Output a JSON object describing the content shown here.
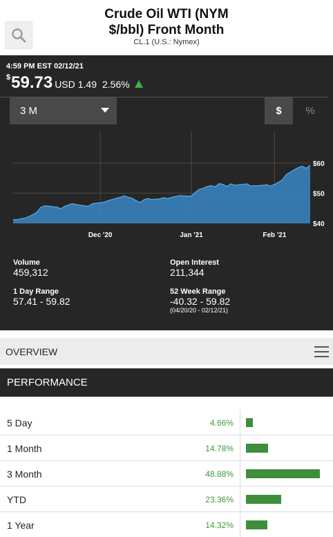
{
  "header": {
    "title_line1": "Crude Oil WTI (NYM",
    "title_line2": "$/bbl) Front Month",
    "subtitle": "CL.1  (U.S.: Nymex)",
    "search_icon": "search-icon"
  },
  "quote": {
    "timestamp": "4:59 PM EST 02/12/21",
    "currency_symbol": "$",
    "price": "59.73",
    "currency": "USD",
    "change": "1.49",
    "change_pct": "2.56%",
    "direction_icon": "up-arrow-icon",
    "up_color": "#3cb44b"
  },
  "controls": {
    "range_selected": "3 M",
    "dollar_label": "$",
    "percent_label": "%"
  },
  "stats": {
    "volume_label": "Volume",
    "volume": "459,312",
    "open_interest_label": "Open Interest",
    "open_interest": "211,344",
    "day_range_label": "1 Day Range",
    "day_range": "57.41 - 59.82",
    "week52_label": "52 Week Range",
    "week52_range": "-40.32 - 59.82",
    "week52_dates": "(04/20/20 - 02/12/21)"
  },
  "overview": {
    "label": "OVERVIEW",
    "menu_icon": "hamburger-icon"
  },
  "performance": {
    "title": "PERFORMANCE",
    "bar_color": "#3e8e3e",
    "rows": [
      {
        "label": "5 Day",
        "value": "4.66%",
        "pct": 4.66
      },
      {
        "label": "1 Month",
        "value": "14.78%",
        "pct": 14.78
      },
      {
        "label": "3 Month",
        "value": "48.88%",
        "pct": 48.88
      },
      {
        "label": "YTD",
        "value": "23.36%",
        "pct": 23.36
      },
      {
        "label": "1 Year",
        "value": "14.32%",
        "pct": 14.32
      }
    ]
  },
  "chart_data": {
    "type": "area",
    "x_ticks": [
      "Dec '20",
      "Jan '21",
      "Feb '21"
    ],
    "y_ticks": [
      "$60",
      "$50",
      "$40"
    ],
    "ylim": [
      40,
      62
    ],
    "color": "#3a87c6",
    "values": [
      41.1,
      41.2,
      41.5,
      41.7,
      42.2,
      42.9,
      43.7,
      45.3,
      45.8,
      45.7,
      45.5,
      45.4,
      44.8,
      45.6,
      46.1,
      46.5,
      46.2,
      46.0,
      45.8,
      45.6,
      46.5,
      46.7,
      46.8,
      47.0,
      47.5,
      47.9,
      48.3,
      48.6,
      49.1,
      48.7,
      48.3,
      47.6,
      46.9,
      47.8,
      48.2,
      47.9,
      48.0,
      48.1,
      48.5,
      48.2,
      48.6,
      48.9,
      49.2,
      49.1,
      49.0,
      49.0,
      50.3,
      51.3,
      51.6,
      52.2,
      52.5,
      52.1,
      53.2,
      52.9,
      52.2,
      53.1,
      52.6,
      52.8,
      52.9,
      53.1,
      52.4,
      52.5,
      52.5,
      52.6,
      52.8,
      52.4,
      52.9,
      53.6,
      54.5,
      56.2,
      57.0,
      57.8,
      58.5,
      59.0,
      58.3,
      59.3
    ]
  }
}
